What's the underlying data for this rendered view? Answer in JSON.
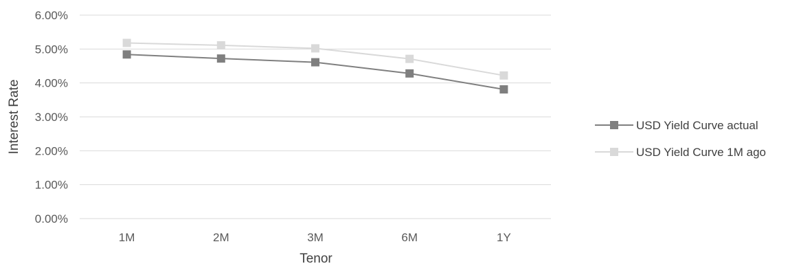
{
  "chart_data": {
    "type": "line",
    "categories": [
      "1M",
      "2M",
      "3M",
      "6M",
      "1Y"
    ],
    "series": [
      {
        "name": "USD Yield Curve actual",
        "values": [
          0.0484,
          0.0472,
          0.0461,
          0.0428,
          0.0381
        ],
        "color": "#7f7f7f"
      },
      {
        "name": "USD Yield Curve 1M ago",
        "values": [
          0.0518,
          0.0511,
          0.0502,
          0.0471,
          0.0422
        ],
        "color": "#d9d9d9"
      }
    ],
    "xlabel": "Tenor",
    "ylabel": "Interest Rate",
    "ylim": [
      0,
      0.06
    ],
    "yticks": [
      "0.00%",
      "1.00%",
      "2.00%",
      "3.00%",
      "4.00%",
      "5.00%",
      "6.00%"
    ],
    "grid": true,
    "legend": "right"
  }
}
